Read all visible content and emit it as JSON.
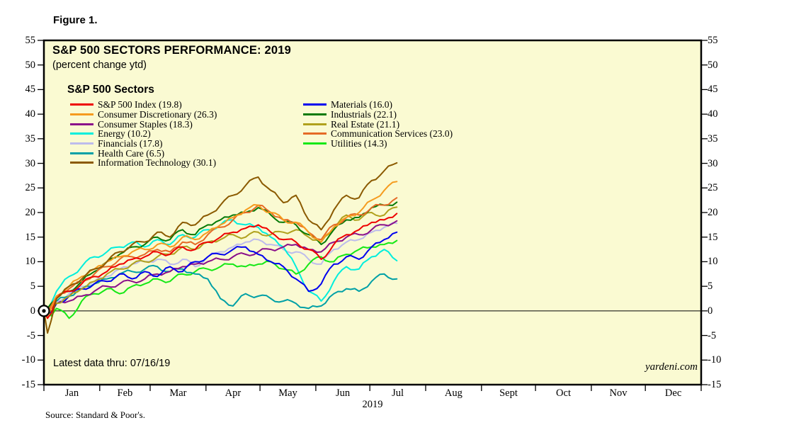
{
  "figure_label": "Figure 1.",
  "header": {
    "title": "S&P 500 SECTORS PERFORMANCE: 2019",
    "subtitle": "(percent change ytd)"
  },
  "legend": {
    "title": "S&P 500 Sectors",
    "columns": [
      [
        0,
        1,
        2,
        3,
        4,
        5,
        6
      ],
      [
        7,
        8,
        9,
        10,
        11
      ]
    ]
  },
  "notes": {
    "latest_data": "Latest data thru: 07/16/19",
    "watermark": "yardeni.com",
    "source": "Source: Standard & Poor's.",
    "year_label": "2019"
  },
  "chart_data": {
    "type": "line",
    "title": "S&P 500 SECTORS PERFORMANCE: 2019",
    "ylabel": "percent change ytd",
    "ylim": [
      -15,
      55
    ],
    "y_ticks": [
      55,
      50,
      45,
      40,
      35,
      30,
      25,
      20,
      15,
      10,
      5,
      0,
      -5,
      -10,
      -15
    ],
    "grid": "zero-line-only",
    "legend_position": "top-left-inside",
    "plot_bg_color": "#FAFAD2",
    "x_unit": "day of year 2019",
    "x_range_days": [
      0,
      365
    ],
    "month_labels": [
      "Jan",
      "Feb",
      "Mar",
      "Apr",
      "May",
      "Jun",
      "Jul",
      "Aug",
      "Sept",
      "Oct",
      "Nov",
      "Dec"
    ],
    "month_boundaries_days": [
      0,
      31,
      59,
      90,
      120,
      151,
      181,
      212,
      243,
      273,
      304,
      334,
      365
    ],
    "latest_data_day": 196,
    "days": [
      0,
      2,
      4,
      7,
      14,
      21,
      28,
      35,
      42,
      49,
      56,
      63,
      70,
      77,
      84,
      91,
      98,
      105,
      112,
      119,
      126,
      133,
      140,
      147,
      154,
      161,
      168,
      175,
      182,
      189,
      196
    ],
    "draw_order": [
      4,
      3,
      11,
      5,
      2,
      7,
      9,
      8,
      10,
      1,
      0,
      6
    ],
    "series": [
      {
        "id": "sp500-index",
        "name": "S&P 500 Index",
        "final": 19.8,
        "label": "S&P 500 Index (19.8)",
        "color": "#EE0000",
        "values": [
          0,
          -1.5,
          -0.5,
          2.5,
          4,
          5.5,
          7,
          8,
          9.5,
          10.5,
          11,
          12,
          11.5,
          13,
          12.5,
          14,
          15,
          16,
          16.8,
          17.5,
          16,
          14.5,
          14,
          12.5,
          10.5,
          13.5,
          15.5,
          16.5,
          18,
          18.5,
          19.8
        ]
      },
      {
        "id": "consumer-discretionary",
        "name": "Consumer Discretionary",
        "final": 26.3,
        "label": "Consumer Discretionary (26.3)",
        "color": "#F59B1E",
        "values": [
          0,
          -1,
          0.5,
          3,
          5,
          7,
          8.5,
          10,
          11,
          12,
          12.5,
          13.5,
          13,
          15,
          14.5,
          16,
          17.5,
          19,
          20.5,
          21.5,
          20,
          18.5,
          18,
          16,
          14,
          17,
          19,
          20,
          22.5,
          24.5,
          26.3
        ]
      },
      {
        "id": "consumer-staples",
        "name": "Consumer Staples",
        "final": 18.3,
        "label": "Consumer Staples (18.3)",
        "color": "#8A0F8A",
        "values": [
          0,
          -0.5,
          0.5,
          1.5,
          2,
          3,
          4,
          5,
          5.5,
          6,
          6.5,
          7.5,
          8,
          9,
          9.5,
          10,
          10.5,
          11,
          11.5,
          12,
          12.5,
          13,
          13.5,
          12.5,
          12,
          14,
          15,
          15.5,
          16.5,
          17.5,
          18.3
        ]
      },
      {
        "id": "energy",
        "name": "Energy",
        "final": 10.2,
        "label": "Energy (10.2)",
        "color": "#00EEDC",
        "values": [
          0,
          -1,
          1.5,
          4,
          7,
          9,
          11,
          12,
          13,
          14,
          13,
          14.5,
          13.5,
          15.5,
          15,
          16.5,
          17.5,
          18.5,
          17.5,
          17,
          15,
          13,
          9,
          4,
          2,
          6,
          9,
          8.5,
          11,
          12.5,
          10.2
        ]
      },
      {
        "id": "financials",
        "name": "Financials",
        "final": 17.8,
        "label": "Financials (17.8)",
        "color": "#BDBCEC",
        "values": [
          0,
          -0.5,
          0.5,
          2,
          3.5,
          5,
          6,
          7,
          8.5,
          9.5,
          10,
          10.5,
          9.5,
          10.5,
          9,
          11,
          12,
          13,
          14,
          14.5,
          13.5,
          12.5,
          12,
          10.5,
          9.5,
          12.5,
          14,
          14.5,
          16,
          17,
          17.8
        ]
      },
      {
        "id": "health-care",
        "name": "Health Care",
        "final": 6.5,
        "label": "Health Care (6.5)",
        "color": "#00A0A6",
        "values": [
          0,
          0.5,
          1.5,
          2,
          3,
          4.5,
          5.5,
          6.5,
          7.5,
          8,
          8.5,
          9,
          8,
          8.5,
          7.5,
          6.5,
          2.5,
          1,
          3.5,
          3,
          2.5,
          2,
          1.5,
          0.5,
          1,
          3.5,
          4.5,
          4,
          6,
          7.5,
          6.5
        ]
      },
      {
        "id": "information-technology",
        "name": "Information Technology",
        "final": 30.1,
        "label": "Information Technology (30.1)",
        "color": "#8B5A00",
        "values": [
          0,
          -4.5,
          -2,
          2.5,
          5,
          6.5,
          8.5,
          10,
          12,
          13.5,
          14,
          16,
          15,
          18,
          17.5,
          19.5,
          21.5,
          23.5,
          25.5,
          27.2,
          24.5,
          22,
          23.5,
          18.5,
          16.5,
          20.5,
          23.5,
          23,
          26.5,
          28.5,
          30.1
        ]
      },
      {
        "id": "materials",
        "name": "Materials",
        "final": 16.0,
        "label": "Materials (16.0)",
        "color": "#0000EE",
        "values": [
          0,
          0.5,
          -0.5,
          1.5,
          3,
          4.5,
          5.5,
          6,
          7.5,
          6.5,
          8,
          7,
          9,
          8,
          10,
          11,
          11.5,
          12.5,
          13,
          11.5,
          10,
          9,
          6.5,
          4,
          5.5,
          9.5,
          11,
          10.5,
          13,
          14.5,
          16
        ]
      },
      {
        "id": "industrials",
        "name": "Industrials",
        "final": 22.1,
        "label": "Industrials (22.1)",
        "color": "#077A07",
        "values": [
          0,
          0.5,
          1.5,
          2.5,
          4,
          6,
          8,
          10,
          11.5,
          13,
          13.5,
          15,
          14.5,
          16.5,
          15.5,
          17.5,
          18.5,
          19.5,
          20,
          21,
          19.5,
          18,
          17.5,
          15.5,
          13.5,
          16.5,
          18.5,
          19,
          21,
          21.5,
          22.1
        ]
      },
      {
        "id": "real-estate",
        "name": "Real Estate",
        "final": 21.1,
        "label": "Real Estate (21.1)",
        "color": "#B0A11C",
        "values": [
          0,
          0.5,
          1,
          1.5,
          3,
          4.5,
          6,
          7.5,
          8.5,
          9.5,
          10,
          11,
          11.5,
          13,
          12.5,
          14,
          14.5,
          15.5,
          15,
          16,
          15.5,
          16,
          16.5,
          15,
          14,
          17,
          19.5,
          18.5,
          20,
          19.5,
          21.1
        ]
      },
      {
        "id": "communication-services",
        "name": "Communication Services",
        "final": 23.0,
        "label": "Communication Services (23.0)",
        "color": "#E56A26",
        "values": [
          0,
          -0.5,
          1,
          3,
          4.5,
          6,
          7.5,
          9,
          10.5,
          11,
          11.5,
          12.5,
          12,
          14,
          13.5,
          15.5,
          17,
          18.5,
          20,
          21.5,
          20,
          18.5,
          18,
          16,
          14.5,
          17.5,
          19,
          19.5,
          21,
          21.5,
          23
        ]
      },
      {
        "id": "utilities",
        "name": "Utilities",
        "final": 14.3,
        "label": "Utilities (14.3)",
        "color": "#15E815",
        "values": [
          0,
          0.5,
          -1,
          0.5,
          -1.5,
          2,
          3.5,
          4.5,
          3.5,
          5,
          5.5,
          6.5,
          6,
          7.5,
          8,
          8.5,
          9,
          9.5,
          9,
          9.5,
          10,
          8.5,
          7.5,
          9.5,
          11,
          10,
          11.5,
          12.5,
          13,
          13.5,
          14.3
        ]
      }
    ]
  }
}
